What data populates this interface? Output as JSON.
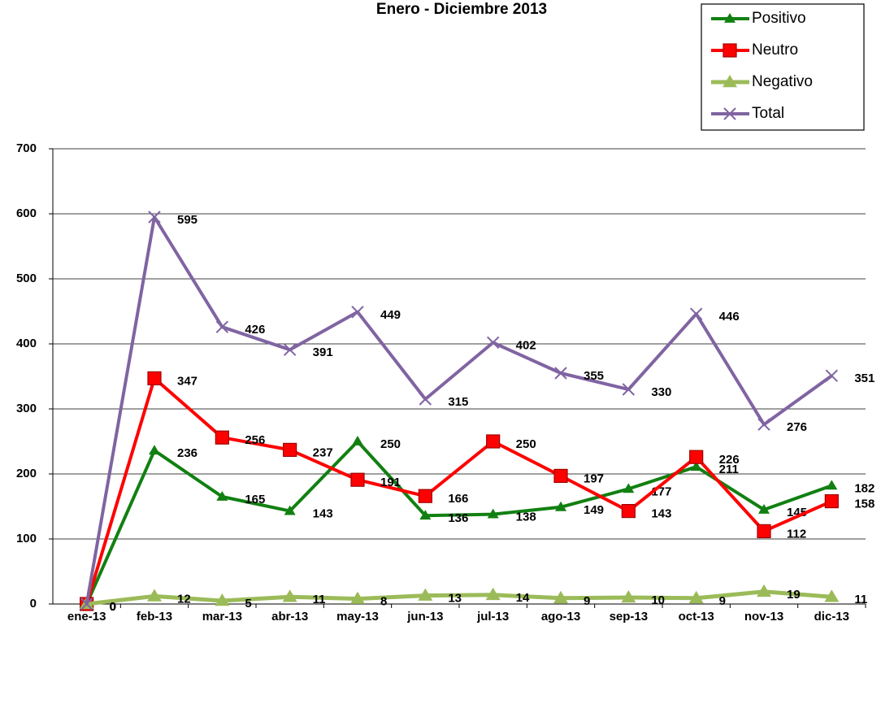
{
  "chart_data": {
    "type": "line",
    "title": "Enero - Diciembre 2013",
    "categories": [
      "ene-13",
      "feb-13",
      "mar-13",
      "abr-13",
      "may-13",
      "jun-13",
      "jul-13",
      "ago-13",
      "sep-13",
      "oct-13",
      "nov-13",
      "dic-13"
    ],
    "series": [
      {
        "name": "Positivo",
        "color": "#118011",
        "marker": "triangle",
        "values": [
          0,
          236,
          165,
          143,
          250,
          136,
          138,
          149,
          177,
          211,
          145,
          182
        ]
      },
      {
        "name": "Neutro",
        "color": "#ff0000",
        "marker": "square",
        "values": [
          0,
          347,
          256,
          237,
          191,
          166,
          250,
          197,
          143,
          226,
          112,
          158
        ]
      },
      {
        "name": "Negativo",
        "color": "#9bbb59",
        "marker": "triangle",
        "values": [
          0,
          12,
          5,
          11,
          8,
          13,
          14,
          9,
          10,
          9,
          19,
          11
        ]
      },
      {
        "name": "Total",
        "color": "#8064a2",
        "marker": "x",
        "values": [
          0,
          595,
          426,
          391,
          449,
          315,
          402,
          355,
          330,
          446,
          276,
          351
        ]
      }
    ],
    "ylim": [
      0,
      700
    ],
    "yticks": [
      0,
      100,
      200,
      300,
      400,
      500,
      600,
      700
    ],
    "grid": true,
    "legend": "top-right"
  }
}
